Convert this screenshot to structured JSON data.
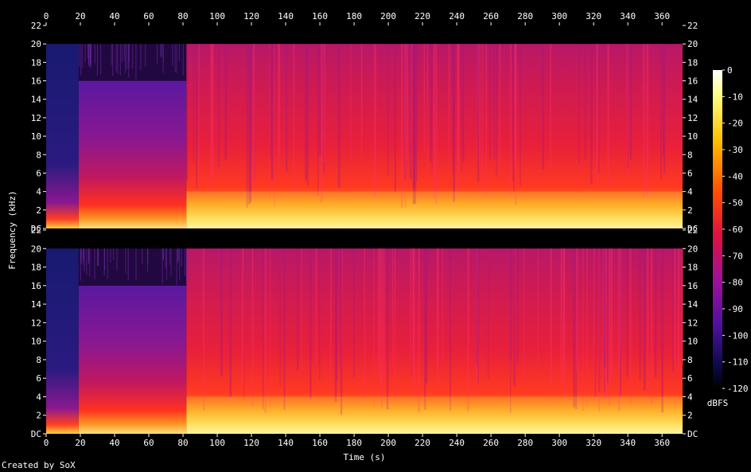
{
  "credit": "Created by SoX",
  "chart_data": {
    "type": "heatmap",
    "subtype": "spectrogram",
    "xlabel": "Time (s)",
    "ylabel": "Frequency (kHz)",
    "x_ticks": [
      0,
      20,
      40,
      60,
      80,
      100,
      120,
      140,
      160,
      180,
      200,
      220,
      240,
      260,
      280,
      300,
      320,
      340,
      360
    ],
    "xlim": [
      0,
      372
    ],
    "y_ticks": [
      "DC",
      "2",
      "4",
      "6",
      "8",
      "10",
      "12",
      "14",
      "16",
      "18",
      "20",
      "22"
    ],
    "ylim": [
      0,
      22
    ],
    "channels": 2,
    "colorbar": {
      "label": "dBFS",
      "ticks": [
        "0",
        "-10",
        "-20",
        "-30",
        "-40",
        "-50",
        "-60",
        "-70",
        "-80",
        "-90",
        "-100",
        "-110",
        "-120"
      ],
      "range": [
        -120,
        0
      ]
    },
    "colors": {
      "background": "#000000",
      "loud": "#ffffcc",
      "mid": "#ff2a2a",
      "quiet": "#6a1fa8",
      "silent": "#0a0a40"
    },
    "segments": [
      {
        "start": 0,
        "end": 19,
        "level": "quiet",
        "cutoff_khz": 20
      },
      {
        "start": 19,
        "end": 82,
        "level": "medium",
        "cutoff_khz": 16
      },
      {
        "start": 82,
        "end": 372,
        "level": "loud",
        "cutoff_khz": 20
      }
    ]
  }
}
